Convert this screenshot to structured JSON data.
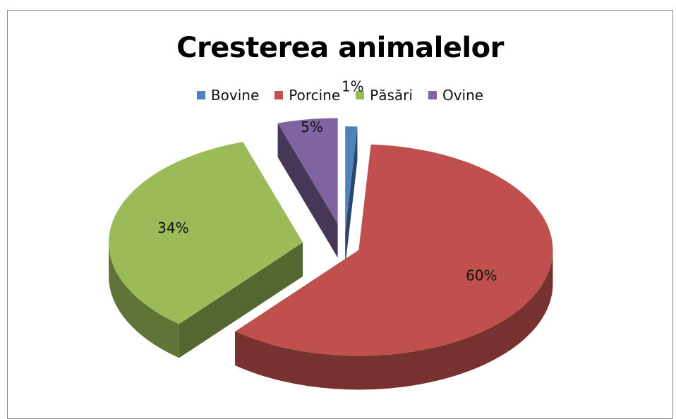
{
  "chart_data": {
    "type": "pie",
    "title": "Cresterea animalelor",
    "categories": [
      "Bovine",
      "Porcine",
      "Păsări",
      "Ovine"
    ],
    "values": [
      1,
      60,
      34,
      5
    ],
    "data_labels": [
      "1%",
      "60%",
      "34%",
      "5%"
    ],
    "colors": [
      "#4f81bd",
      "#c0504d",
      "#9bbb59",
      "#8064a2"
    ],
    "legend_position": "top",
    "style": "3D exploded pie"
  }
}
